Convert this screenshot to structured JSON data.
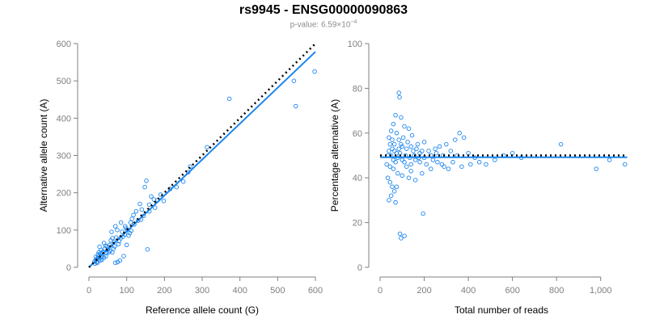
{
  "header": {
    "title": "rs9945 - ENSG00000090863",
    "pvalue_prefix": "p-value: 6.59×10",
    "pvalue_exponent": "−4"
  },
  "colors": {
    "points": "#1c86ee",
    "fit": "#1c86ee",
    "reference": "#000000",
    "axis": "#7f7f7f"
  },
  "chart_data": [
    {
      "type": "scatter",
      "xlabel": "Reference allele count (G)",
      "ylabel": "Alternative allele count (A)",
      "xlim": [
        0,
        600
      ],
      "ylim": [
        0,
        600
      ],
      "xticks": [
        "0",
        "100",
        "200",
        "300",
        "400",
        "500",
        "600"
      ],
      "yticks": [
        "0",
        "100",
        "200",
        "300",
        "400",
        "500",
        "600"
      ],
      "xtick_values": [
        0,
        100,
        200,
        300,
        400,
        500,
        600
      ],
      "ytick_values": [
        0,
        100,
        200,
        300,
        400,
        500,
        600
      ],
      "grid": false,
      "fit_line": [
        [
          0,
          0
        ],
        [
          600,
          578
        ]
      ],
      "reference_line": [
        [
          0,
          0
        ],
        [
          600,
          600
        ]
      ],
      "points": [
        [
          372,
          452
        ],
        [
          598,
          525
        ],
        [
          543,
          500
        ],
        [
          548,
          432
        ],
        [
          313,
          322
        ],
        [
          268,
          270
        ],
        [
          263,
          255
        ],
        [
          250,
          230
        ],
        [
          232,
          215
        ],
        [
          215,
          210
        ],
        [
          198,
          178
        ],
        [
          190,
          195
        ],
        [
          182,
          180
        ],
        [
          160,
          168
        ],
        [
          152,
          232
        ],
        [
          148,
          215
        ],
        [
          165,
          190
        ],
        [
          172,
          182
        ],
        [
          140,
          155
        ],
        [
          135,
          170
        ],
        [
          155,
          48
        ],
        [
          118,
          140
        ],
        [
          110,
          120
        ],
        [
          98,
          105
        ],
        [
          92,
          30
        ],
        [
          76,
          14
        ],
        [
          70,
          12
        ],
        [
          82,
          18
        ],
        [
          100,
          60
        ],
        [
          105,
          85
        ],
        [
          88,
          95
        ],
        [
          62,
          78
        ],
        [
          55,
          60
        ],
        [
          48,
          55
        ],
        [
          42,
          50
        ],
        [
          35,
          40
        ],
        [
          30,
          36
        ],
        [
          25,
          28
        ],
        [
          22,
          24
        ],
        [
          18,
          20
        ],
        [
          15,
          16
        ],
        [
          28,
          55
        ],
        [
          40,
          65
        ],
        [
          60,
          95
        ],
        [
          70,
          110
        ],
        [
          52,
          40
        ],
        [
          45,
          30
        ],
        [
          65,
          50
        ],
        [
          80,
          70
        ],
        [
          95,
          88
        ],
        [
          120,
          115
        ],
        [
          130,
          125
        ],
        [
          112,
          98
        ],
        [
          125,
          150
        ],
        [
          145,
          138
        ],
        [
          85,
          120
        ],
        [
          75,
          100
        ],
        [
          58,
          72
        ],
        [
          38,
          42
        ],
        [
          33,
          30
        ],
        [
          27,
          22
        ],
        [
          20,
          14
        ],
        [
          24,
          34
        ],
        [
          32,
          46
        ],
        [
          44,
          58
        ],
        [
          50,
          48
        ],
        [
          66,
          68
        ],
        [
          72,
          80
        ],
        [
          90,
          82
        ],
        [
          102,
          100
        ],
        [
          108,
          92
        ],
        [
          78,
          62
        ],
        [
          68,
          56
        ],
        [
          56,
          44
        ],
        [
          46,
          38
        ],
        [
          36,
          28
        ],
        [
          30,
          18
        ],
        [
          26,
          40
        ],
        [
          18,
          28
        ],
        [
          16,
          10
        ],
        [
          22,
          12
        ],
        [
          34,
          20
        ],
        [
          40,
          26
        ],
        [
          62,
          40
        ],
        [
          84,
          78
        ],
        [
          96,
          110
        ],
        [
          114,
          130
        ],
        [
          138,
          128
        ],
        [
          160,
          150
        ],
        [
          175,
          160
        ]
      ]
    },
    {
      "type": "scatter",
      "xlabel": "Total number of reads",
      "ylabel": "Percentage alternative (A)",
      "xlim": [
        0,
        1100
      ],
      "ylim": [
        0,
        100
      ],
      "xticks": [
        "0",
        "200",
        "400",
        "600",
        "800",
        "1,000"
      ],
      "yticks": [
        "0",
        "20",
        "40",
        "60",
        "80",
        "100"
      ],
      "xtick_values": [
        0,
        200,
        400,
        600,
        800,
        1000
      ],
      "ytick_values": [
        0,
        20,
        40,
        60,
        80,
        100
      ],
      "grid": false,
      "fit_line": [
        [
          0,
          49.2
        ],
        [
          1120,
          49.2
        ]
      ],
      "reference_line": [
        [
          0,
          50
        ],
        [
          1120,
          50
        ]
      ],
      "points": [
        [
          85,
          78
        ],
        [
          88,
          76
        ],
        [
          70,
          68
        ],
        [
          95,
          67
        ],
        [
          60,
          64
        ],
        [
          110,
          63
        ],
        [
          130,
          62
        ],
        [
          50,
          61
        ],
        [
          75,
          60
        ],
        [
          145,
          59
        ],
        [
          360,
          60
        ],
        [
          380,
          58
        ],
        [
          340,
          57
        ],
        [
          200,
          56
        ],
        [
          170,
          55
        ],
        [
          40,
          58
        ],
        [
          55,
          57
        ],
        [
          65,
          55
        ],
        [
          100,
          54
        ],
        [
          120,
          53
        ],
        [
          150,
          52
        ],
        [
          180,
          51
        ],
        [
          220,
          52
        ],
        [
          250,
          53
        ],
        [
          270,
          54
        ],
        [
          300,
          55
        ],
        [
          320,
          52
        ],
        [
          350,
          50
        ],
        [
          400,
          51
        ],
        [
          430,
          49
        ],
        [
          450,
          47
        ],
        [
          480,
          46
        ],
        [
          520,
          48
        ],
        [
          560,
          50
        ],
        [
          600,
          51
        ],
        [
          640,
          49
        ],
        [
          820,
          55
        ],
        [
          980,
          44
        ],
        [
          1040,
          48
        ],
        [
          1110,
          46
        ],
        [
          45,
          45
        ],
        [
          60,
          44
        ],
        [
          80,
          42
        ],
        [
          100,
          41
        ],
        [
          130,
          40
        ],
        [
          160,
          39
        ],
        [
          190,
          42
        ],
        [
          230,
          44
        ],
        [
          280,
          46
        ],
        [
          330,
          47
        ],
        [
          45,
          38
        ],
        [
          55,
          36
        ],
        [
          65,
          34
        ],
        [
          50,
          32
        ],
        [
          40,
          30
        ],
        [
          70,
          29
        ],
        [
          75,
          36
        ],
        [
          35,
          40
        ],
        [
          30,
          46
        ],
        [
          35,
          50
        ],
        [
          40,
          52
        ],
        [
          50,
          50
        ],
        [
          60,
          48
        ],
        [
          70,
          47
        ],
        [
          80,
          49
        ],
        [
          90,
          51
        ],
        [
          100,
          48
        ],
        [
          110,
          47
        ],
        [
          120,
          45
        ],
        [
          140,
          46
        ],
        [
          160,
          48
        ],
        [
          180,
          47
        ],
        [
          200,
          49
        ],
        [
          210,
          46
        ],
        [
          240,
          48
        ],
        [
          260,
          47
        ],
        [
          290,
          45
        ],
        [
          310,
          44
        ],
        [
          370,
          45
        ],
        [
          410,
          46
        ],
        [
          90,
          15
        ],
        [
          95,
          13
        ],
        [
          110,
          14
        ],
        [
          195,
          24
        ],
        [
          85,
          57
        ],
        [
          105,
          58
        ],
        [
          125,
          56
        ],
        [
          140,
          54
        ],
        [
          165,
          53
        ],
        [
          190,
          52
        ],
        [
          45,
          55
        ],
        [
          55,
          53
        ],
        [
          65,
          52
        ],
        [
          75,
          51
        ],
        [
          85,
          53
        ],
        [
          95,
          55
        ],
        [
          115,
          50
        ],
        [
          135,
          49
        ],
        [
          155,
          50
        ],
        [
          175,
          49
        ],
        [
          230,
          50
        ],
        [
          255,
          51
        ],
        [
          285,
          50
        ],
        [
          140,
          43
        ]
      ]
    }
  ]
}
